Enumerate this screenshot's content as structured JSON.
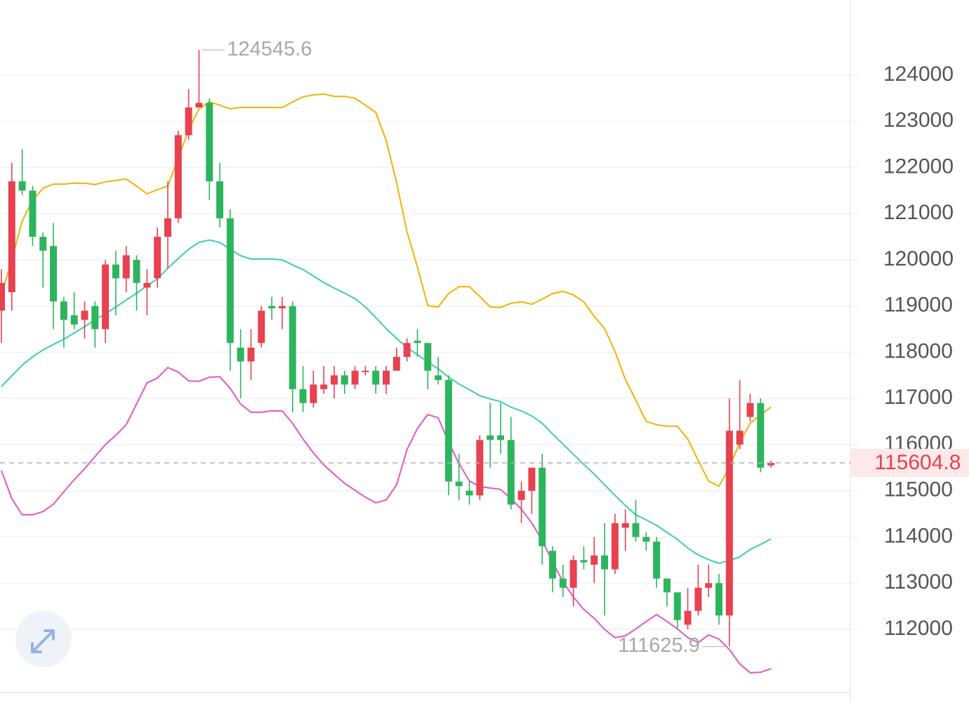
{
  "chart_data": {
    "type": "candlestick",
    "ylim": [
      110646,
      125627
    ],
    "yticks": [
      112000,
      113000,
      114000,
      115000,
      116000,
      117000,
      118000,
      119000,
      120000,
      121000,
      122000,
      123000,
      124000
    ],
    "grid": true,
    "up_color": "#e8414f",
    "down_color": "#2db55d",
    "candles": {
      "open": [
        118900,
        119300,
        121700,
        121500,
        120500,
        120300,
        119100,
        118800,
        118700,
        119000,
        118500,
        119900,
        119600,
        120000,
        119400,
        119600,
        120500,
        120900,
        122700,
        123300,
        123400,
        121700,
        120900,
        118100,
        117800,
        118200,
        119000,
        118950,
        119000,
        117200,
        116900,
        117200,
        117300,
        117500,
        117300,
        117600,
        117600,
        117300,
        117600,
        117900,
        118250,
        118200,
        117500,
        117400,
        115200,
        115000,
        114900,
        116200,
        116200,
        116100,
        114800,
        115000,
        115500,
        113700,
        113100,
        112900,
        113500,
        113400,
        113600,
        113300,
        114200,
        114300,
        114000,
        113900,
        113100,
        112800,
        112100,
        112400,
        112900,
        113000,
        112300,
        116000,
        116600,
        116900,
        115550
      ],
      "high": [
        119800,
        122100,
        122400,
        121600,
        120600,
        120800,
        119200,
        119300,
        119100,
        119100,
        120000,
        120200,
        120300,
        120100,
        119800,
        120700,
        121700,
        122800,
        123700,
        124545.6,
        123500,
        122100,
        121100,
        118500,
        118500,
        119000,
        119200,
        119200,
        119100,
        117700,
        117600,
        117700,
        117700,
        117600,
        117700,
        117700,
        117700,
        117700,
        118100,
        118300,
        118500,
        118200,
        117900,
        117500,
        115800,
        115200,
        116200,
        116900,
        116900,
        116600,
        115200,
        115500,
        115800,
        113800,
        113400,
        113600,
        113800,
        114000,
        114300,
        114500,
        114600,
        114800,
        114100,
        114000,
        113100,
        112800,
        112900,
        113400,
        113400,
        113200,
        117000,
        117400,
        117100,
        117000,
        115650
      ],
      "low": [
        118200,
        118900,
        121400,
        120300,
        119400,
        118500,
        118100,
        118500,
        118300,
        118100,
        118200,
        118800,
        119300,
        118900,
        118800,
        119400,
        119800,
        120800,
        122600,
        123300,
        121300,
        120700,
        117600,
        117000,
        117400,
        118100,
        118700,
        118500,
        116700,
        116700,
        116800,
        117100,
        117000,
        117100,
        117200,
        117500,
        117100,
        117100,
        117600,
        117800,
        117900,
        117200,
        117300,
        114900,
        114800,
        114700,
        114800,
        115500,
        115800,
        114600,
        114300,
        114500,
        113400,
        112800,
        112700,
        112500,
        113300,
        113000,
        112300,
        113200,
        113700,
        113900,
        113700,
        112900,
        112500,
        112000,
        112000,
        112300,
        112700,
        112100,
        111625.9,
        115900,
        116500,
        115400,
        115500
      ],
      "close": [
        119500,
        121700,
        121500,
        120500,
        120200,
        119100,
        118700,
        118600,
        118900,
        118500,
        119900,
        119600,
        120100,
        119500,
        119500,
        120500,
        120900,
        122700,
        123300,
        123400,
        121700,
        120900,
        118200,
        117800,
        118100,
        118900,
        118950,
        119000,
        117200,
        116900,
        117300,
        117300,
        117500,
        117300,
        117600,
        117600,
        117300,
        117600,
        117900,
        118200,
        118200,
        117600,
        117400,
        115200,
        115100,
        114900,
        116100,
        116100,
        116100,
        114700,
        115000,
        115500,
        113800,
        113100,
        112900,
        113500,
        113450,
        113600,
        113300,
        114300,
        114300,
        114000,
        113900,
        113100,
        112800,
        112200,
        112400,
        112900,
        113000,
        112300,
        116300,
        116300,
        116900,
        115500,
        115604.8
      ]
    },
    "lines": [
      {
        "color": "#f0b400",
        "values": [
          119240,
          120000,
          120840,
          121290,
          121550,
          121640,
          121640,
          121660,
          121660,
          121630,
          121690,
          121720,
          121750,
          121600,
          121430,
          121520,
          121600,
          122210,
          122810,
          123270,
          123420,
          123350,
          123270,
          123300,
          123300,
          123300,
          123300,
          123300,
          123420,
          123530,
          123570,
          123590,
          123540,
          123540,
          123500,
          123350,
          123190,
          122590,
          121670,
          120610,
          119850,
          119010,
          118980,
          119270,
          119420,
          119420,
          119210,
          118980,
          118970,
          119060,
          119090,
          119040,
          119150,
          119270,
          119320,
          119240,
          119090,
          118780,
          118510,
          118020,
          117410,
          116960,
          116500,
          116430,
          116400,
          116400,
          116120,
          115660,
          115210,
          115100,
          115510,
          116050,
          116460,
          116650,
          116810
        ]
      },
      {
        "color": "#3dcfae",
        "values": [
          117260,
          117490,
          117720,
          117900,
          118050,
          118170,
          118280,
          118420,
          118550,
          118710,
          118830,
          118980,
          119130,
          119280,
          119440,
          119590,
          119820,
          120030,
          120230,
          120380,
          120430,
          120380,
          120230,
          120090,
          120020,
          120020,
          120020,
          120000,
          119890,
          119790,
          119650,
          119510,
          119390,
          119280,
          119160,
          118980,
          118750,
          118510,
          118300,
          118100,
          117950,
          117790,
          117640,
          117460,
          117310,
          117190,
          117060,
          116990,
          116930,
          116810,
          116730,
          116620,
          116460,
          116230,
          116010,
          115790,
          115570,
          115360,
          115130,
          114900,
          114680,
          114480,
          114370,
          114250,
          114100,
          113950,
          113760,
          113610,
          113510,
          113430,
          113490,
          113570,
          113730,
          113840,
          113960
        ]
      },
      {
        "color": "#e058c6",
        "values": [
          115440,
          114830,
          114480,
          114480,
          114550,
          114710,
          114980,
          115240,
          115480,
          115740,
          116000,
          116200,
          116430,
          116880,
          117340,
          117440,
          117670,
          117570,
          117380,
          117370,
          117460,
          117470,
          117220,
          116880,
          116700,
          116700,
          116730,
          116730,
          116460,
          116120,
          115820,
          115560,
          115360,
          115160,
          115010,
          114860,
          114740,
          114800,
          115130,
          115890,
          116350,
          116650,
          116580,
          116050,
          115590,
          115210,
          115090,
          115060,
          115030,
          114830,
          114600,
          114300,
          113920,
          113460,
          113030,
          112700,
          112430,
          112240,
          112000,
          111820,
          111860,
          112010,
          112170,
          112320,
          112170,
          112010,
          111820,
          111710,
          111880,
          111790,
          111560,
          111250,
          111060,
          111070,
          111150
        ]
      }
    ],
    "max_index": 19,
    "min_index": 70,
    "last_index": 74
  }
}
